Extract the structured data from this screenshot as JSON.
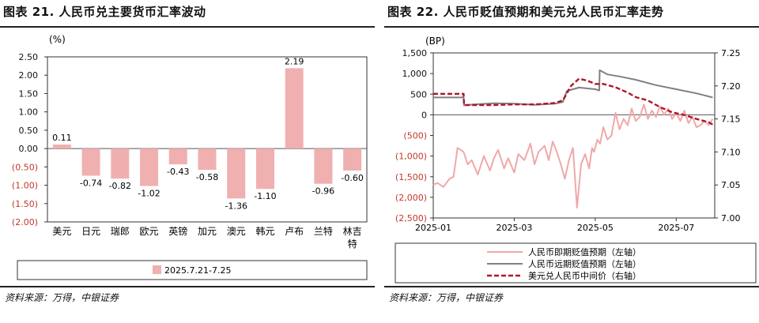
{
  "left": {
    "title": "图表 21. 人民币兑主要货币汇率波动",
    "source": "资料来源：万得，中银证券",
    "chart_data": {
      "type": "bar",
      "ylabel": "(%)",
      "ylim": [
        -2.0,
        2.5
      ],
      "yticks": [
        "2.50",
        "2.00",
        "1.50",
        "1.00",
        "0.50",
        "0.00",
        "(0.50)",
        "(1.00)",
        "(1.50)",
        "(2.00)"
      ],
      "ytick_values": [
        2.5,
        2.0,
        1.5,
        1.0,
        0.5,
        0.0,
        -0.5,
        -1.0,
        -1.5,
        -2.0
      ],
      "categories": [
        "美元",
        "日元",
        "瑞郎",
        "欧元",
        "英镑",
        "加元",
        "澳元",
        "韩元",
        "卢布",
        "兰特",
        "林吉特"
      ],
      "values": [
        0.11,
        -0.74,
        -0.82,
        -1.02,
        -0.43,
        -0.58,
        -1.36,
        -1.1,
        2.19,
        -0.96,
        -0.6
      ],
      "value_labels": [
        "0.11",
        "-0.74",
        "-0.82",
        "-1.02",
        "-0.43",
        "-0.58",
        "-1.36",
        "-1.10",
        "2.19",
        "-0.96",
        "-0.60"
      ],
      "series": [
        {
          "name": "2025.7.21-7.25",
          "color": "#f0b0b0"
        }
      ],
      "grid": false,
      "legend": "bottom"
    }
  },
  "right": {
    "title": "图表 22. 人民币贬值预期和美元兑人民币汇率走势",
    "source": "资料来源：万得，中银证券",
    "chart_data": {
      "type": "line",
      "ylabel_left": "(BP)",
      "y_left": {
        "min": -2500,
        "max": 1500,
        "ticks": [
          "1,500",
          "1,000",
          "500",
          "0",
          "(500)",
          "(1,000)",
          "(1,500)",
          "(2,000)",
          "(2,500)"
        ],
        "tick_values": [
          1500,
          1000,
          500,
          0,
          -500,
          -1000,
          -1500,
          -2000,
          -2500
        ]
      },
      "y_right": {
        "min": 7.0,
        "max": 7.25,
        "ticks": [
          "7.25",
          "7.20",
          "7.15",
          "7.10",
          "7.05",
          "7.00"
        ],
        "tick_values": [
          7.25,
          7.2,
          7.15,
          7.1,
          7.05,
          7.0
        ]
      },
      "x_ticks": [
        "2025-01",
        "2025-03",
        "2025-05",
        "2025-07"
      ],
      "x_tick_months": [
        0,
        2,
        4,
        6
      ],
      "x_range_months": [
        0,
        6.95
      ],
      "legend": "bottom",
      "series": [
        {
          "name": "人民币即期贬值预期（左轴）",
          "axis": "left",
          "color": "#f0a8a8",
          "style": "solid",
          "x": [
            0,
            0.1,
            0.25,
            0.4,
            0.5,
            0.6,
            0.75,
            0.85,
            0.95,
            1.1,
            1.25,
            1.4,
            1.5,
            1.6,
            1.75,
            1.85,
            2.0,
            2.1,
            2.25,
            2.4,
            2.5,
            2.6,
            2.75,
            2.85,
            2.95,
            3.05,
            3.15,
            3.25,
            3.35,
            3.45,
            3.55,
            3.65,
            3.75,
            3.85,
            3.92,
            3.97,
            4.05,
            4.12,
            4.2,
            4.3,
            4.4,
            4.5,
            4.6,
            4.7,
            4.8,
            4.9,
            5.0,
            5.1,
            5.2,
            5.3,
            5.4,
            5.5,
            5.6,
            5.7,
            5.8,
            5.9,
            6.0,
            6.1,
            6.2,
            6.3,
            6.4,
            6.5,
            6.6,
            6.7,
            6.8,
            6.9
          ],
          "y": [
            -1700,
            -1650,
            -1750,
            -1550,
            -1500,
            -800,
            -900,
            -1200,
            -1100,
            -1450,
            -1000,
            -1350,
            -1050,
            -850,
            -1300,
            -1050,
            -1400,
            -950,
            -1100,
            -700,
            -1200,
            -900,
            -750,
            -1100,
            -650,
            -900,
            -1200,
            -1550,
            -1100,
            -800,
            -2250,
            -1200,
            -950,
            -1300,
            -800,
            -900,
            -600,
            -700,
            -300,
            -600,
            -500,
            50,
            -350,
            -100,
            -250,
            150,
            -150,
            -50,
            250,
            -100,
            100,
            -50,
            200,
            0,
            150,
            -100,
            50,
            -150,
            100,
            -200,
            -50,
            -300,
            -250,
            -150,
            -250,
            -100
          ]
        },
        {
          "name": "人民币远期贬值预期（左轴）",
          "axis": "left",
          "color": "#808080",
          "style": "solid",
          "x": [
            0,
            0.3,
            0.6,
            0.75,
            0.76,
            1.0,
            1.5,
            2.0,
            2.5,
            3.0,
            3.2,
            3.3,
            3.6,
            4.0,
            4.1,
            4.11,
            4.3,
            4.6,
            5.0,
            5.5,
            6.0,
            6.5,
            6.7,
            6.9
          ],
          "y": [
            420,
            420,
            420,
            420,
            230,
            250,
            280,
            270,
            240,
            270,
            310,
            580,
            660,
            620,
            590,
            1080,
            980,
            930,
            850,
            720,
            620,
            520,
            470,
            420
          ]
        },
        {
          "name": "美元兑人民币中间价（右轴）",
          "axis": "right",
          "color": "#b0162a",
          "style": "dashed",
          "x": [
            0,
            0.5,
            0.75,
            0.76,
            1.5,
            2.0,
            2.5,
            3.0,
            3.2,
            3.4,
            3.6,
            3.8,
            4.0,
            4.2,
            4.5,
            4.8,
            5.0,
            5.3,
            5.6,
            5.9,
            6.2,
            6.5,
            6.8,
            6.95
          ],
          "y": [
            7.188,
            7.188,
            7.188,
            7.171,
            7.171,
            7.172,
            7.172,
            7.174,
            7.178,
            7.2,
            7.211,
            7.208,
            7.203,
            7.203,
            7.198,
            7.19,
            7.183,
            7.178,
            7.168,
            7.16,
            7.156,
            7.15,
            7.145,
            7.14
          ]
        }
      ]
    }
  }
}
